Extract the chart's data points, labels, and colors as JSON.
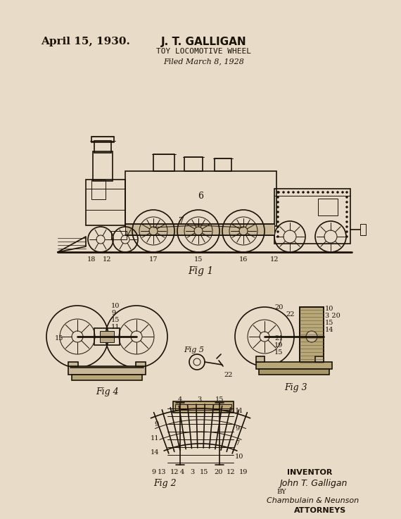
{
  "bg_color": "#e8dcc8",
  "line_color": "#2a2018",
  "title_left": "April 15, 1930.",
  "title_center": "J. T. GALLIGAN",
  "subtitle": "TOY LOCOMOTIVE WHEEL",
  "filed": "Filed March 8, 1928",
  "fig1_label": "Fig 1",
  "fig2_label": "Fig 2",
  "fig3_label": "Fig 3",
  "fig4_label": "Fig 4",
  "fig5_label": "Fig 5",
  "inventor_label": "INVENTOR",
  "inventor_name": "John T. Galligan",
  "by_label": "BY",
  "attorneys_firm": "Chambulain & Neunson",
  "attorneys_label": "ATTORNEYS",
  "ink_color": "#1a1208"
}
